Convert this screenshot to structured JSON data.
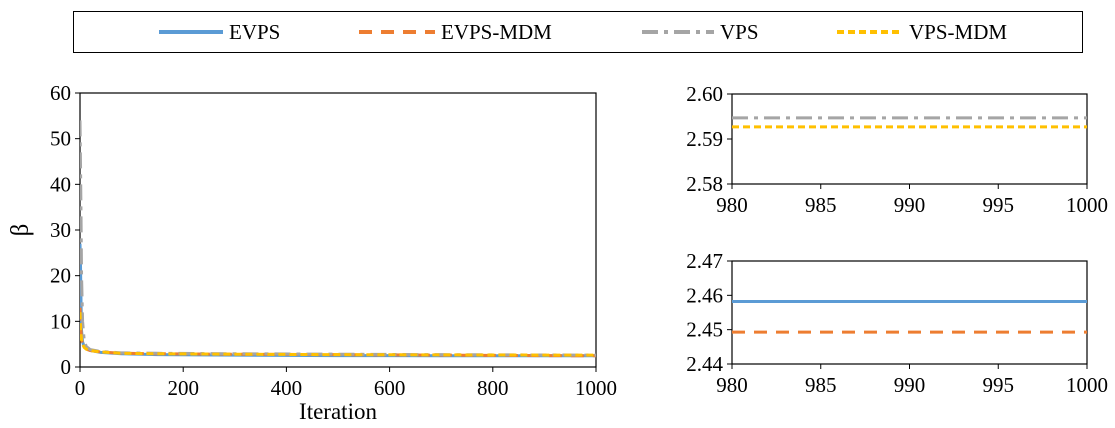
{
  "colors": {
    "EVPS": "#5b9bd5",
    "EVPS-MDM": "#ed7d31",
    "VPS": "#a5a5a5",
    "VPS-MDM": "#ffc000"
  },
  "legend": [
    {
      "label": "EVPS",
      "style": "solid",
      "color": "#5b9bd5"
    },
    {
      "label": "EVPS-MDM",
      "style": "dashed",
      "color": "#ed7d31"
    },
    {
      "label": "VPS",
      "style": "dashdot",
      "color": "#a5a5a5"
    },
    {
      "label": "VPS-MDM",
      "style": "shortdash",
      "color": "#ffc000"
    }
  ],
  "chart_data": [
    {
      "type": "line",
      "xlabel": "Iteration",
      "ylabel": "β",
      "xlim": [
        0,
        1000
      ],
      "ylim": [
        0,
        60
      ],
      "xticks": [
        0,
        200,
        400,
        600,
        800,
        1000
      ],
      "yticks": [
        0,
        10,
        20,
        30,
        40,
        50,
        60
      ],
      "series": [
        {
          "name": "EVPS",
          "x": [
            0,
            1,
            2,
            3,
            5,
            8,
            12,
            20,
            40,
            80,
            150,
            300,
            500,
            700,
            1000
          ],
          "y": [
            27,
            22,
            14,
            8,
            5.5,
            4.5,
            4,
            3.6,
            3.2,
            2.9,
            2.7,
            2.6,
            2.5,
            2.47,
            2.46
          ]
        },
        {
          "name": "EVPS-MDM",
          "x": [
            0,
            1,
            2,
            3,
            5,
            8,
            12,
            20,
            40,
            80,
            150,
            300,
            500,
            700,
            1000
          ],
          "y": [
            13,
            10,
            8,
            6,
            5,
            4.3,
            3.9,
            3.6,
            3.3,
            3.0,
            2.9,
            2.8,
            2.7,
            2.6,
            2.45
          ]
        },
        {
          "name": "VPS",
          "x": [
            0,
            1,
            2,
            3,
            5,
            8,
            12,
            20,
            40,
            80,
            150,
            300,
            500,
            700,
            1000
          ],
          "y": [
            54,
            44,
            33,
            20,
            10,
            6,
            4.5,
            3.8,
            3.4,
            3.1,
            3.0,
            2.9,
            2.8,
            2.7,
            2.59
          ]
        },
        {
          "name": "VPS-MDM",
          "x": [
            0,
            1,
            2,
            3,
            5,
            8,
            12,
            20,
            40,
            80,
            150,
            300,
            500,
            700,
            1000
          ],
          "y": [
            12,
            9,
            7,
            6,
            5,
            4.3,
            3.9,
            3.6,
            3.3,
            3.0,
            2.9,
            2.8,
            2.7,
            2.65,
            2.59
          ]
        }
      ]
    },
    {
      "type": "line",
      "xlim": [
        980,
        1000
      ],
      "ylim": [
        2.58,
        2.6
      ],
      "xticks": [
        980,
        985,
        990,
        995,
        1000
      ],
      "yticks": [
        "2.58",
        "2.59",
        "2.60"
      ],
      "series": [
        {
          "name": "VPS",
          "x": [
            980,
            1000
          ],
          "y": [
            2.5947,
            2.5947
          ]
        },
        {
          "name": "VPS-MDM",
          "x": [
            980,
            1000
          ],
          "y": [
            2.5927,
            2.5927
          ]
        }
      ]
    },
    {
      "type": "line",
      "xlim": [
        980,
        1000
      ],
      "ylim": [
        2.44,
        2.47
      ],
      "xticks": [
        980,
        985,
        990,
        995,
        1000
      ],
      "yticks": [
        "2.44",
        "2.45",
        "2.46",
        "2.47"
      ],
      "series": [
        {
          "name": "EVPS",
          "x": [
            980,
            1000
          ],
          "y": [
            2.4582,
            2.4582
          ]
        },
        {
          "name": "EVPS-MDM",
          "x": [
            980,
            1000
          ],
          "y": [
            2.4493,
            2.4493
          ]
        }
      ]
    }
  ]
}
